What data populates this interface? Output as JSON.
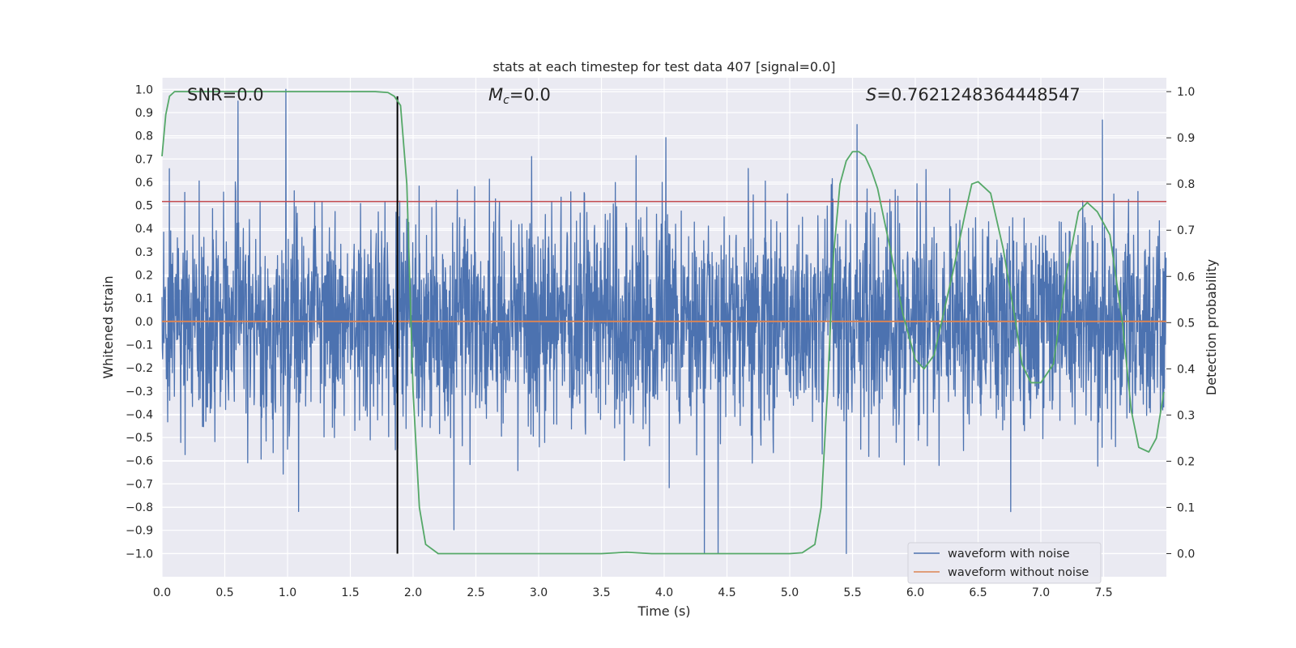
{
  "chart_data": {
    "type": "line",
    "title": "stats at each timestep for test data 407 [signal=0.0]",
    "xlabel": "Time (s)",
    "ylabel": "Whitened strain",
    "ylabel_right": "Detection probability",
    "xlim": [
      0.0,
      8.0
    ],
    "ylim": [
      -1.1,
      1.05
    ],
    "ylim_right": [
      -0.05,
      1.03
    ],
    "x_ticks": [
      "0.0",
      "0.5",
      "1.0",
      "1.5",
      "2.0",
      "2.5",
      "3.0",
      "3.5",
      "4.0",
      "4.5",
      "5.0",
      "5.5",
      "6.0",
      "6.5",
      "7.0",
      "7.5"
    ],
    "y_ticks": [
      "1.0",
      "0.9",
      "0.8",
      "0.7",
      "0.6",
      "0.5",
      "0.4",
      "0.3",
      "0.2",
      "0.1",
      "0.0",
      "−0.1",
      "−0.2",
      "−0.3",
      "−0.4",
      "−0.5",
      "−0.6",
      "−0.7",
      "−0.8",
      "−0.9",
      "−1.0"
    ],
    "y_ticks_right": [
      "1.0",
      "0.9",
      "0.8",
      "0.7",
      "0.6",
      "0.5",
      "0.4",
      "0.3",
      "0.2",
      "0.1",
      "0.0"
    ],
    "annotations": {
      "snr": "SNR=0.0",
      "mc_symbol": "M",
      "mc_sub": "c",
      "mc_value": "=0.0",
      "s_symbol": "S",
      "s_value": "=0.7621248364448547"
    },
    "threshold": 0.7621248364448547,
    "marker_time": 1.875,
    "series": [
      {
        "name": "waveform with noise",
        "color": "#4c72b0",
        "typical_peak": 0.5,
        "max_abs": 1.0,
        "seed": 407
      },
      {
        "name": "waveform without noise",
        "color": "#dd8452",
        "constant_value": 0.0
      },
      {
        "name": "detection probability",
        "color": "#55a868",
        "x": [
          0.0,
          0.03,
          0.06,
          0.1,
          0.15,
          0.3,
          0.5,
          1.0,
          1.5,
          1.7,
          1.8,
          1.85,
          1.9,
          1.95,
          2.0,
          2.05,
          2.1,
          2.2,
          2.5,
          3.0,
          3.5,
          3.7,
          3.9,
          4.5,
          5.0,
          5.1,
          5.2,
          5.25,
          5.3,
          5.35,
          5.4,
          5.45,
          5.5,
          5.55,
          5.6,
          5.65,
          5.7,
          5.8,
          5.9,
          6.0,
          6.07,
          6.15,
          6.3,
          6.4,
          6.45,
          6.5,
          6.6,
          6.7,
          6.8,
          6.85,
          6.92,
          7.0,
          7.1,
          7.2,
          7.3,
          7.37,
          7.45,
          7.55,
          7.65,
          7.72,
          7.78,
          7.86,
          7.92,
          7.98
        ],
        "y": [
          0.86,
          0.95,
          0.99,
          1.0,
          1.0,
          1.0,
          1.0,
          1.0,
          1.0,
          1.0,
          0.998,
          0.99,
          0.97,
          0.8,
          0.35,
          0.1,
          0.02,
          0.0,
          0.0,
          0.0,
          0.0,
          0.003,
          0.0,
          0.0,
          0.0,
          0.002,
          0.02,
          0.1,
          0.35,
          0.65,
          0.8,
          0.85,
          0.87,
          0.87,
          0.86,
          0.83,
          0.79,
          0.66,
          0.52,
          0.42,
          0.4,
          0.43,
          0.61,
          0.74,
          0.8,
          0.805,
          0.78,
          0.66,
          0.5,
          0.41,
          0.37,
          0.37,
          0.41,
          0.6,
          0.74,
          0.76,
          0.74,
          0.69,
          0.5,
          0.31,
          0.23,
          0.22,
          0.25,
          0.35
        ]
      },
      {
        "name": "detection threshold",
        "color": "#c44e52",
        "constant_value": 0.7621248364448547
      },
      {
        "name": "marker",
        "color": "#000000"
      }
    ],
    "legend": {
      "position": "lower-right",
      "entries": [
        {
          "label": "waveform with noise",
          "color": "#4c72b0"
        },
        {
          "label": "waveform without noise",
          "color": "#dd8452"
        }
      ]
    },
    "grid": true
  }
}
